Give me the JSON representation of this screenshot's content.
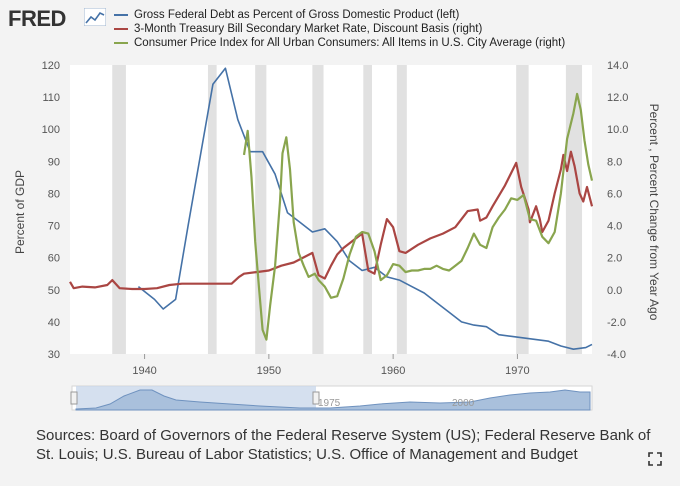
{
  "header": {
    "logo_text": "FRED",
    "logo_icon": "line-chart-icon"
  },
  "colors": {
    "debt": "#4572a7",
    "tbill": "#aa4643",
    "cpi": "#89a54e",
    "recession": "#e1e1e1"
  },
  "legend": [
    {
      "label": "Gross Federal Debt as Percent of Gross Domestic Product (left)",
      "color": "#4572a7"
    },
    {
      "label": "3-Month Treasury Bill Secondary Market Rate, Discount Basis (right)",
      "color": "#aa4643"
    },
    {
      "label": "Consumer Price Index for All Urban Consumers: All Items in U.S. City Average (right)",
      "color": "#89a54e"
    }
  ],
  "chart_data": {
    "type": "line",
    "x_range": [
      1934,
      1976
    ],
    "x_ticks": [
      1940,
      1950,
      1960,
      1970
    ],
    "left_axis": {
      "label": "Percent of GDP",
      "range": [
        30,
        120
      ],
      "ticks": [
        30,
        40,
        50,
        60,
        70,
        80,
        90,
        100,
        110,
        120
      ]
    },
    "right_axis": {
      "label": "Percent , Percent Change from Year Ago",
      "range": [
        -4,
        14
      ],
      "ticks": [
        "-4.0",
        "-2.0",
        "0.0",
        "2.0",
        "4.0",
        "6.0",
        "8.0",
        "10.0",
        "12.0",
        "14.0"
      ]
    },
    "recessions": [
      [
        1937.4,
        1938.5
      ],
      [
        1945.1,
        1945.8
      ],
      [
        1948.9,
        1949.8
      ],
      [
        1953.5,
        1954.4
      ],
      [
        1957.6,
        1958.3
      ],
      [
        1960.3,
        1961.1
      ],
      [
        1969.9,
        1970.9
      ],
      [
        1973.9,
        1975.2
      ]
    ],
    "series": [
      {
        "name": "Gross Federal Debt as Percent of Gross Domestic Product (left)",
        "axis": "left",
        "points": [
          [
            1939.5,
            51
          ],
          [
            1940.8,
            47
          ],
          [
            1941.5,
            44
          ],
          [
            1942.5,
            47
          ],
          [
            1943.5,
            70
          ],
          [
            1944.5,
            92
          ],
          [
            1945.5,
            114
          ],
          [
            1946.5,
            119
          ],
          [
            1947.5,
            103
          ],
          [
            1948.5,
            93
          ],
          [
            1949.5,
            93
          ],
          [
            1950.5,
            86
          ],
          [
            1951.5,
            74
          ],
          [
            1952.5,
            71
          ],
          [
            1953.5,
            68
          ],
          [
            1954.5,
            69
          ],
          [
            1955.5,
            65
          ],
          [
            1956.5,
            59
          ],
          [
            1957.5,
            56
          ],
          [
            1958.5,
            57
          ],
          [
            1959.5,
            54
          ],
          [
            1960.5,
            53
          ],
          [
            1961.5,
            51
          ],
          [
            1962.5,
            49
          ],
          [
            1963.5,
            46
          ],
          [
            1964.5,
            43
          ],
          [
            1965.5,
            40
          ],
          [
            1966.5,
            39
          ],
          [
            1967.5,
            38.5
          ],
          [
            1968.5,
            36
          ],
          [
            1969.5,
            35.5
          ],
          [
            1970.5,
            35
          ],
          [
            1971.5,
            34.5
          ],
          [
            1972.5,
            34
          ],
          [
            1973.5,
            32.5
          ],
          [
            1974.5,
            31.5
          ],
          [
            1975.5,
            32
          ],
          [
            1976,
            33
          ]
        ]
      },
      {
        "name": "3-Month Treasury Bill Secondary Market Rate, Discount Basis (right)",
        "axis": "right",
        "points": [
          [
            1934.0,
            0.5
          ],
          [
            1934.3,
            0.1
          ],
          [
            1935,
            0.2
          ],
          [
            1936,
            0.15
          ],
          [
            1937,
            0.3
          ],
          [
            1937.4,
            0.6
          ],
          [
            1938,
            0.1
          ],
          [
            1939,
            0.05
          ],
          [
            1940,
            0.05
          ],
          [
            1941,
            0.1
          ],
          [
            1942,
            0.3
          ],
          [
            1943,
            0.38
          ],
          [
            1944,
            0.38
          ],
          [
            1945,
            0.38
          ],
          [
            1946,
            0.38
          ],
          [
            1947,
            0.38
          ],
          [
            1947.6,
            0.8
          ],
          [
            1948,
            1.0
          ],
          [
            1949,
            1.1
          ],
          [
            1950,
            1.2
          ],
          [
            1951,
            1.5
          ],
          [
            1952,
            1.7
          ],
          [
            1953,
            2.1
          ],
          [
            1953.5,
            2.3
          ],
          [
            1954,
            0.9
          ],
          [
            1954.5,
            0.7
          ],
          [
            1955,
            1.5
          ],
          [
            1955.5,
            2.2
          ],
          [
            1956,
            2.6
          ],
          [
            1957,
            3.2
          ],
          [
            1957.5,
            3.5
          ],
          [
            1958,
            1.2
          ],
          [
            1958.5,
            1.0
          ],
          [
            1959,
            2.8
          ],
          [
            1959.5,
            4.4
          ],
          [
            1960,
            3.9
          ],
          [
            1960.5,
            2.4
          ],
          [
            1961,
            2.3
          ],
          [
            1962,
            2.8
          ],
          [
            1963,
            3.2
          ],
          [
            1964,
            3.5
          ],
          [
            1965,
            3.9
          ],
          [
            1966,
            4.9
          ],
          [
            1966.8,
            5.0
          ],
          [
            1967,
            4.3
          ],
          [
            1967.5,
            4.5
          ],
          [
            1968,
            5.2
          ],
          [
            1969,
            6.5
          ],
          [
            1969.9,
            7.9
          ],
          [
            1970.3,
            6.4
          ],
          [
            1970.9,
            5.0
          ],
          [
            1971,
            4.2
          ],
          [
            1971.5,
            5.2
          ],
          [
            1971.8,
            4.4
          ],
          [
            1972,
            3.6
          ],
          [
            1972.5,
            4.3
          ],
          [
            1973,
            6.0
          ],
          [
            1973.5,
            7.5
          ],
          [
            1973.7,
            8.4
          ],
          [
            1974,
            7.4
          ],
          [
            1974.3,
            8.6
          ],
          [
            1974.6,
            7.7
          ],
          [
            1975,
            6.0
          ],
          [
            1975.3,
            5.5
          ],
          [
            1975.6,
            6.4
          ],
          [
            1976,
            5.2
          ]
        ]
      },
      {
        "name": "Consumer Price Index for All Urban Consumers: All Items in U.S. City Average (right)",
        "axis": "right",
        "points": [
          [
            1948.0,
            8.4
          ],
          [
            1948.3,
            9.9
          ],
          [
            1948.6,
            7.0
          ],
          [
            1948.9,
            3.0
          ],
          [
            1949.2,
            0.2
          ],
          [
            1949.5,
            -2.5
          ],
          [
            1949.8,
            -3.1
          ],
          [
            1950.1,
            -1.0
          ],
          [
            1950.5,
            1.5
          ],
          [
            1950.9,
            5.5
          ],
          [
            1951.1,
            8.5
          ],
          [
            1951.4,
            9.5
          ],
          [
            1951.7,
            7.5
          ],
          [
            1952.0,
            4.2
          ],
          [
            1952.4,
            2.3
          ],
          [
            1952.8,
            1.5
          ],
          [
            1953.2,
            0.8
          ],
          [
            1953.7,
            1.0
          ],
          [
            1954.0,
            0.6
          ],
          [
            1954.5,
            0.2
          ],
          [
            1955.0,
            -0.5
          ],
          [
            1955.5,
            -0.4
          ],
          [
            1956.0,
            0.7
          ],
          [
            1956.5,
            2.2
          ],
          [
            1957.0,
            3.3
          ],
          [
            1957.5,
            3.6
          ],
          [
            1958.0,
            3.5
          ],
          [
            1958.5,
            2.4
          ],
          [
            1959.0,
            0.6
          ],
          [
            1959.5,
            0.9
          ],
          [
            1960.0,
            1.6
          ],
          [
            1960.5,
            1.5
          ],
          [
            1961.0,
            1.1
          ],
          [
            1961.5,
            1.2
          ],
          [
            1962.0,
            1.2
          ],
          [
            1962.5,
            1.3
          ],
          [
            1963.0,
            1.3
          ],
          [
            1963.5,
            1.5
          ],
          [
            1964.0,
            1.3
          ],
          [
            1964.5,
            1.2
          ],
          [
            1965.0,
            1.5
          ],
          [
            1965.5,
            1.8
          ],
          [
            1966.0,
            2.6
          ],
          [
            1966.5,
            3.5
          ],
          [
            1967.0,
            2.8
          ],
          [
            1967.5,
            2.6
          ],
          [
            1968.0,
            3.9
          ],
          [
            1968.5,
            4.5
          ],
          [
            1969.0,
            5.0
          ],
          [
            1969.5,
            5.7
          ],
          [
            1970.0,
            5.6
          ],
          [
            1970.5,
            5.9
          ],
          [
            1971.0,
            4.4
          ],
          [
            1971.5,
            4.3
          ],
          [
            1972.0,
            3.3
          ],
          [
            1972.5,
            2.9
          ],
          [
            1973.0,
            3.6
          ],
          [
            1973.5,
            6.0
          ],
          [
            1974.0,
            9.4
          ],
          [
            1974.5,
            11.0
          ],
          [
            1974.8,
            12.2
          ],
          [
            1975.1,
            11.2
          ],
          [
            1975.4,
            9.3
          ],
          [
            1975.7,
            7.8
          ],
          [
            1976.0,
            6.8
          ]
        ]
      }
    ]
  },
  "navigator": {
    "label_left": "1975",
    "label_right": "2000"
  },
  "footer": {
    "sources_text": "Sources: Board of Governors of the Federal Reserve System (US); Federal Reserve Bank of St. Louis; U.S. Bureau of Labor Statistics; U.S. Office of Management and Budget",
    "expand_icon": "expand-icon"
  }
}
